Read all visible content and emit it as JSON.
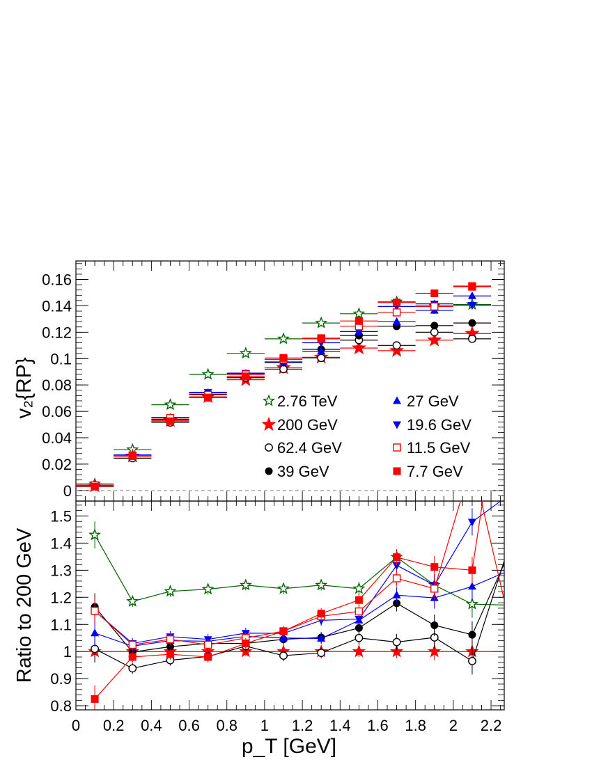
{
  "chart_data": [
    {
      "type": "scatter",
      "panel": "top",
      "title": "",
      "xlabel": "",
      "ylabel": "v₂{RP}",
      "xlim": [
        0,
        2.27
      ],
      "ylim": [
        -0.008,
        0.174
      ],
      "yticks": [
        0,
        0.02,
        0.04,
        0.06,
        0.08,
        0.1,
        0.12,
        0.14,
        0.16
      ],
      "ytick_labels": [
        "0",
        "0.02",
        "0.04",
        "0.06",
        "0.08",
        "0.1",
        "0.12",
        "0.14",
        "0.16"
      ],
      "x": [
        0.1,
        0.3,
        0.5,
        0.7,
        0.9,
        1.1,
        1.3,
        1.5,
        1.7,
        1.9,
        2.1
      ],
      "bin_halfwidth": 0.1,
      "grid": false,
      "reference_line": 0,
      "legend_position": "bottom-right",
      "series": [
        {
          "name": "2.76 TeV",
          "color": "#006400",
          "marker": "open-star",
          "values": [
            0.005,
            0.031,
            0.065,
            0.088,
            0.104,
            0.115,
            0.127,
            0.134,
            0.143,
            0.14,
            0.141
          ]
        },
        {
          "name": "200 GeV",
          "color": "#ff0000",
          "marker": "star",
          "values": [
            0.0035,
            0.026,
            0.053,
            0.071,
            0.084,
            0.093,
            0.101,
            0.108,
            0.106,
            0.114,
            0.119
          ]
        },
        {
          "name": "62.4 GeV",
          "color": "#000000",
          "marker": "open-circle",
          "values": [
            0.0035,
            0.0245,
            0.0515,
            0.0705,
            0.0855,
            0.092,
            0.1005,
            0.114,
            0.11,
            0.12,
            0.115
          ]
        },
        {
          "name": "39 GeV",
          "color": "#000000",
          "marker": "circle",
          "values": [
            0.004,
            0.0265,
            0.054,
            0.073,
            0.0865,
            0.097,
            0.107,
            0.1175,
            0.1245,
            0.125,
            0.127
          ]
        },
        {
          "name": "27 GeV",
          "color": "#0000ff",
          "marker": "triangle-up",
          "values": [
            0.004,
            0.0265,
            0.055,
            0.074,
            0.0885,
            0.0975,
            0.1055,
            0.1205,
            0.128,
            0.1365,
            0.1475
          ]
        },
        {
          "name": "19.6 GeV",
          "color": "#0000ff",
          "marker": "triangle-down",
          "values": [
            0.004,
            0.027,
            0.0555,
            0.0745,
            0.089,
            0.0995,
            0.112,
            0.1205,
            0.1395,
            0.1415,
            0.1405
          ]
        },
        {
          "name": "11.5 GeV",
          "color": "#ff0000",
          "marker": "open-square",
          "values": [
            0.004,
            0.0265,
            0.055,
            0.0725,
            0.088,
            0.0995,
            0.115,
            0.1245,
            0.135,
            0.1395,
            0.1545
          ]
        },
        {
          "name": "7.7 GeV",
          "color": "#ff0000",
          "marker": "square",
          "values": [
            0.003,
            0.026,
            0.0525,
            0.0705,
            0.0865,
            0.1005,
            0.1155,
            0.1285,
            0.1425,
            0.1495,
            0.155
          ]
        }
      ]
    },
    {
      "type": "line",
      "panel": "bottom",
      "title": "",
      "xlabel": "p_T [GeV]",
      "ylabel": "Ratio to 200 GeV",
      "xlim": [
        0,
        2.27
      ],
      "ylim": [
        0.785,
        1.555
      ],
      "xticks": [
        0,
        0.2,
        0.4,
        0.6,
        0.8,
        1,
        1.2,
        1.4,
        1.6,
        1.8,
        2,
        2.2
      ],
      "xtick_labels": [
        "0",
        "0.2",
        "0.4",
        "0.6",
        "0.8",
        "1",
        "1.2",
        "1.4",
        "1.6",
        "1.8",
        "2",
        "2.2"
      ],
      "yticks": [
        0.8,
        0.9,
        1,
        1.1,
        1.2,
        1.3,
        1.4,
        1.5
      ],
      "ytick_labels": [
        "0.8",
        "0.9",
        "1",
        "1.1",
        "1.2",
        "1.3",
        "1.4",
        "1.5"
      ],
      "x": [
        0.1,
        0.3,
        0.5,
        0.7,
        0.9,
        1.1,
        1.3,
        1.5,
        1.7,
        1.9,
        2.1
      ],
      "grid": false,
      "reference_line": 1,
      "series": [
        {
          "name": "2.76 TeV",
          "color": "#006400",
          "marker": "open-star",
          "values": [
            1.43,
            1.185,
            1.222,
            1.23,
            1.245,
            1.232,
            1.245,
            1.232,
            1.348,
            1.245,
            1.175
          ],
          "tail": [
            2.35,
            1.17
          ]
        },
        {
          "name": "200 GeV",
          "color": "#ff0000",
          "marker": "star",
          "values": [
            1.0,
            1.0,
            1.0,
            1.0,
            1.0,
            1.0,
            1.0,
            1.0,
            1.0,
            1.0,
            1.0
          ],
          "tail": [
            2.35,
            1.0
          ]
        },
        {
          "name": "62.4 GeV",
          "color": "#000000",
          "marker": "open-circle",
          "values": [
            1.01,
            0.938,
            0.968,
            0.982,
            1.02,
            0.985,
            0.995,
            1.05,
            1.035,
            1.052,
            0.965
          ],
          "tail": [
            2.3,
            1.4
          ]
        },
        {
          "name": "39 GeV",
          "color": "#000000",
          "marker": "circle",
          "values": [
            1.165,
            0.998,
            1.018,
            1.03,
            1.03,
            1.045,
            1.052,
            1.087,
            1.178,
            1.097,
            1.062
          ],
          "tail": [
            2.3,
            1.37
          ]
        },
        {
          "name": "27 GeV",
          "color": "#0000ff",
          "marker": "triangle-up",
          "values": [
            1.068,
            1.02,
            1.04,
            1.038,
            1.056,
            1.05,
            1.048,
            1.115,
            1.208,
            1.198,
            1.24
          ],
          "tail": [
            2.3,
            1.3
          ]
        },
        {
          "name": "19.6 GeV",
          "color": "#0000ff",
          "marker": "triangle-down",
          "values": [
            1.15,
            1.03,
            1.055,
            1.045,
            1.068,
            1.067,
            1.115,
            1.12,
            1.318,
            1.245,
            1.478
          ],
          "tail": [
            2.3,
            1.58
          ]
        },
        {
          "name": "11.5 GeV",
          "color": "#ff0000",
          "marker": "open-square",
          "values": [
            1.15,
            1.025,
            1.045,
            1.025,
            1.05,
            1.075,
            1.13,
            1.148,
            1.27,
            1.232,
            1.7
          ],
          "tail": [
            2.28,
            1.16
          ]
        },
        {
          "name": "7.7 GeV",
          "color": "#ff0000",
          "marker": "square",
          "values": [
            0.825,
            0.98,
            0.99,
            0.98,
            1.03,
            1.075,
            1.14,
            1.19,
            1.348,
            1.312,
            1.3
          ],
          "tail": [
            2.17,
            1.62
          ]
        }
      ]
    }
  ]
}
